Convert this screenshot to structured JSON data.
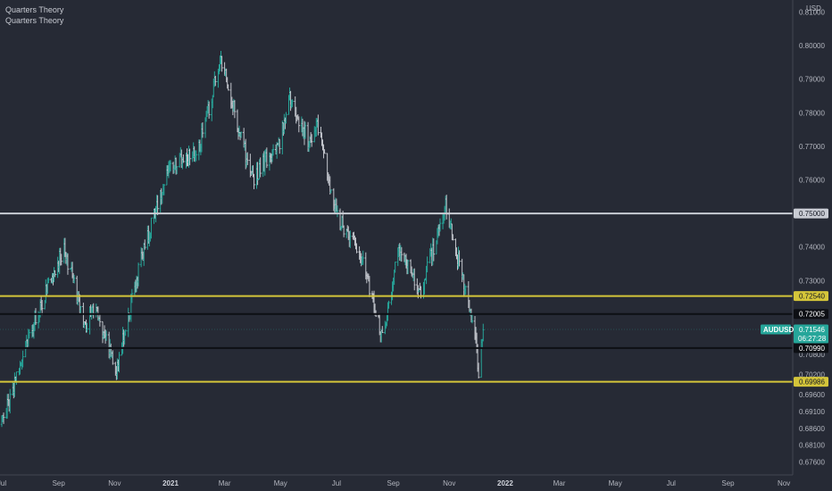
{
  "legend": {
    "line1": "Quarters Theory",
    "line2": "Quarters Theory"
  },
  "chart_data": {
    "type": "ohlc",
    "symbol": "AUDUSD",
    "currency": "USD",
    "last_price": "0.71546",
    "countdown": "06:27:28",
    "ylim": [
      0.67211,
      0.8136
    ],
    "y_ticks": [
      "0.81000",
      "0.80000",
      "0.79000",
      "0.78000",
      "0.77000",
      "0.76000",
      "0.74000",
      "0.73000",
      "0.70800",
      "0.70200",
      "0.69600",
      "0.69100",
      "0.68600",
      "0.68100",
      "0.67600"
    ],
    "x_ticks": [
      {
        "label": "Jul",
        "bold": false
      },
      {
        "label": "Sep",
        "bold": false
      },
      {
        "label": "Nov",
        "bold": false
      },
      {
        "label": "2021",
        "bold": true
      },
      {
        "label": "Mar",
        "bold": false
      },
      {
        "label": "May",
        "bold": false
      },
      {
        "label": "Jul",
        "bold": false
      },
      {
        "label": "Sep",
        "bold": false
      },
      {
        "label": "Nov",
        "bold": false
      },
      {
        "label": "2022",
        "bold": true
      },
      {
        "label": "Mar",
        "bold": false
      },
      {
        "label": "May",
        "bold": false
      },
      {
        "label": "Jul",
        "bold": false
      },
      {
        "label": "Sep",
        "bold": false
      },
      {
        "label": "Nov",
        "bold": false
      }
    ],
    "levels": [
      {
        "value": 0.75,
        "label": "0.75000",
        "color": "#c9ccd4",
        "text_color": "#131722"
      },
      {
        "value": 0.7254,
        "label": "0.72540",
        "color": "#d4c53a",
        "text_color": "#131722"
      },
      {
        "value": 0.72005,
        "label": "0.72005",
        "color": "#0d0f14",
        "text_color": "#ffffff"
      },
      {
        "value": 0.7099,
        "label": "0.70990",
        "color": "#0d0f14",
        "text_color": "#ffffff"
      },
      {
        "value": 0.69986,
        "label": "0.69986",
        "color": "#d4c53a",
        "text_color": "#131722"
      }
    ],
    "colors": {
      "up": "#26a69a",
      "down": "#c2c5cc",
      "background": "#262a35",
      "price_tag": "#26a69a"
    },
    "path_anchors": [
      [
        "2020-07-01",
        0.6872
      ],
      [
        "2020-07-31",
        0.714
      ],
      [
        "2020-08-31",
        0.7355
      ],
      [
        "2020-09-07",
        0.7393
      ],
      [
        "2020-09-30",
        0.7165
      ],
      [
        "2020-10-10",
        0.7232
      ],
      [
        "2020-10-25",
        0.7097
      ],
      [
        "2020-11-02",
        0.7032
      ],
      [
        "2020-11-30",
        0.736
      ],
      [
        "2020-12-31",
        0.765
      ],
      [
        "2021-01-31",
        0.7682
      ],
      [
        "2021-02-25",
        0.796
      ],
      [
        "2021-03-31",
        0.76
      ],
      [
        "2021-04-30",
        0.7715
      ],
      [
        "2021-05-10",
        0.785
      ],
      [
        "2021-05-31",
        0.7718
      ],
      [
        "2021-06-10",
        0.776
      ],
      [
        "2021-06-30",
        0.7505
      ],
      [
        "2021-07-31",
        0.735
      ],
      [
        "2021-08-20",
        0.713
      ],
      [
        "2021-08-31",
        0.729
      ],
      [
        "2021-09-05",
        0.741
      ],
      [
        "2021-09-30",
        0.7255
      ],
      [
        "2021-10-28",
        0.752
      ],
      [
        "2021-11-30",
        0.714
      ],
      [
        "2021-12-03",
        0.7
      ],
      [
        "2021-12-08",
        0.7155
      ]
    ]
  }
}
